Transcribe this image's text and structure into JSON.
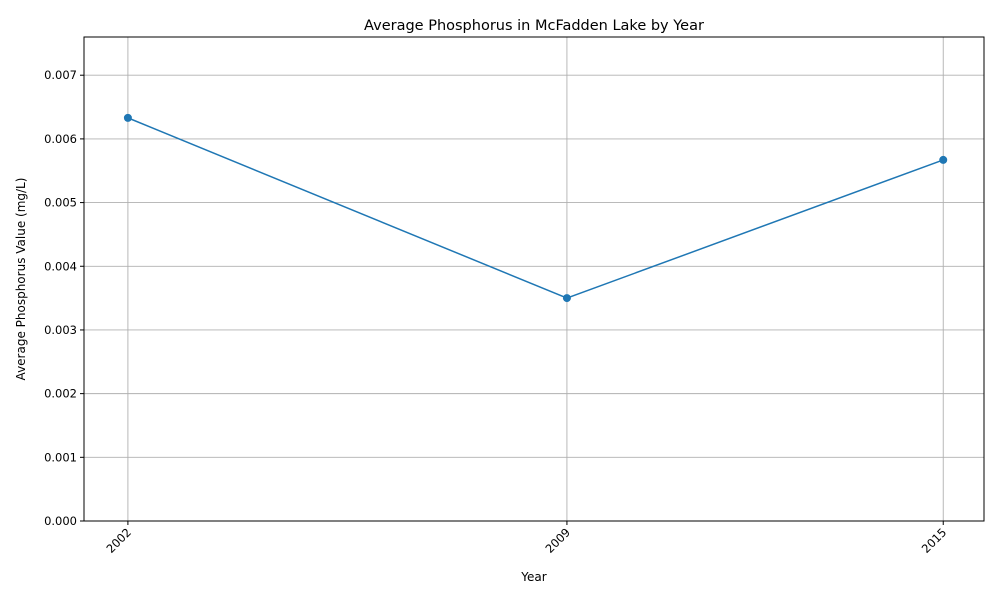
{
  "chart_data": {
    "type": "line",
    "title": "Average Phosphorus in McFadden Lake by Year",
    "xlabel": "Year",
    "ylabel": "Average Phosphorus Value (mg/L)",
    "x": [
      "2002",
      "2009",
      "2015"
    ],
    "x_numeric": [
      2002,
      2009,
      2015
    ],
    "series": [
      {
        "values": [
          0.00633,
          0.0035,
          0.00567
        ],
        "color": "#1f77b4",
        "marker": "circle"
      }
    ],
    "ylim": [
      0,
      0.0076
    ],
    "xlim": [
      2001.3,
      2015.65
    ],
    "yticks": [
      "0.000",
      "0.001",
      "0.002",
      "0.003",
      "0.004",
      "0.005",
      "0.006",
      "0.007"
    ],
    "ytick_values": [
      0,
      0.001,
      0.002,
      0.003,
      0.004,
      0.005,
      0.006,
      0.007
    ],
    "grid": true,
    "xtick_rotation": "45deg"
  }
}
